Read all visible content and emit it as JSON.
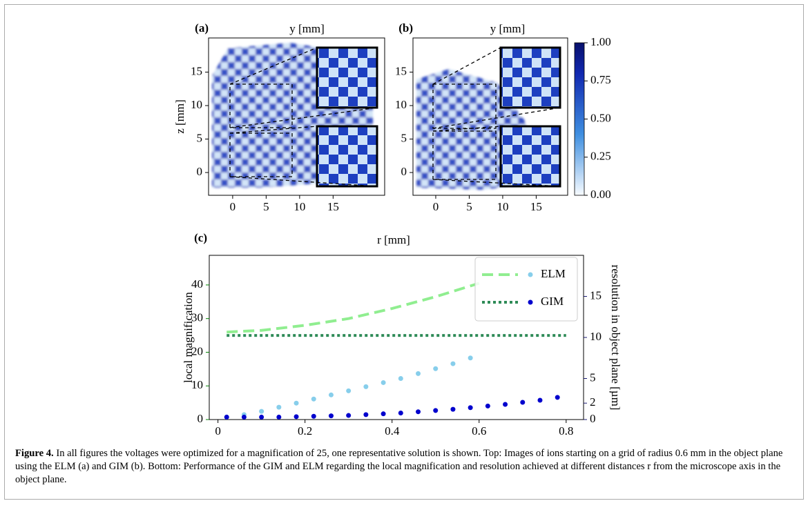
{
  "figure": {
    "panels": [
      {
        "label": "(a)",
        "xlabel": "y [mm]",
        "ylabel": "z [mm]",
        "xlim": [
          -3.6,
          22.7
        ],
        "ylim": [
          -3.4,
          20.1
        ],
        "xticks": [
          0,
          5,
          10,
          15
        ],
        "yticks": [
          0,
          5,
          10,
          15
        ]
      },
      {
        "label": "(b)",
        "xlabel": "y [mm]",
        "xlim": [
          -3.4,
          19.7
        ],
        "ylim": [
          -3.4,
          20.1
        ],
        "xticks": [
          0,
          5,
          10,
          15
        ],
        "yticks": [
          0,
          5,
          10,
          15
        ]
      }
    ],
    "colorbar": {
      "lim": [
        0,
        1
      ],
      "ticks": [
        {
          "value": 0,
          "label": "0.00"
        },
        {
          "value": 0.25,
          "label": "0.25"
        },
        {
          "value": 0.5,
          "label": "0.50"
        },
        {
          "value": 0.75,
          "label": "0.75"
        },
        {
          "value": 1,
          "label": "1.00"
        }
      ]
    }
  },
  "chart_data": {
    "type": "line",
    "label": "(c)",
    "xlabel": "r [mm]",
    "ylabel": "local magnification",
    "y2label": "resolution in object plane [µm]",
    "ylabel_color": "green",
    "y2label_color": "midnightblue",
    "legend": "upper right",
    "xlim": [
      -0.02,
      0.84
    ],
    "xticks": [
      0,
      0.2,
      0.4,
      0.6,
      0.8
    ],
    "ylim": [
      0,
      48.8
    ],
    "yticks": [
      0,
      10,
      20,
      30,
      40
    ],
    "y2lim": [
      0,
      20
    ],
    "y2ticks": [
      0,
      2,
      5,
      10,
      15
    ],
    "series": [
      {
        "name": "ELM",
        "color": "#90ee90",
        "style": "dashed",
        "x": [
          0.02,
          0.1,
          0.2,
          0.3,
          0.4,
          0.5,
          0.6
        ],
        "values": [
          26,
          26.5,
          28,
          30,
          33,
          36.5,
          40.5
        ]
      },
      {
        "name": "GIM",
        "color": "#2e8b57",
        "style": "dotted",
        "x": [
          0.02,
          0.8
        ],
        "values": [
          25,
          25
        ]
      },
      {
        "color": "#87ceeb",
        "style": "points",
        "axis": "y2",
        "x": [
          0.02,
          0.06,
          0.1,
          0.14,
          0.18,
          0.22,
          0.26,
          0.3,
          0.34,
          0.38,
          0.42,
          0.46,
          0.5,
          0.54,
          0.58
        ],
        "values": [
          0.3,
          0.6,
          1.0,
          1.5,
          2.0,
          2.5,
          3.0,
          3.5,
          4.0,
          4.5,
          5.0,
          5.6,
          6.2,
          6.8,
          7.5
        ]
      },
      {
        "color": "#0000cd",
        "style": "points",
        "axis": "y2",
        "x": [
          0.02,
          0.06,
          0.1,
          0.14,
          0.18,
          0.22,
          0.26,
          0.3,
          0.34,
          0.38,
          0.42,
          0.46,
          0.5,
          0.54,
          0.58,
          0.62,
          0.66,
          0.7,
          0.74,
          0.78
        ],
        "values": [
          0.3,
          0.3,
          0.3,
          0.3,
          0.35,
          0.4,
          0.45,
          0.5,
          0.6,
          0.7,
          0.8,
          0.95,
          1.1,
          1.25,
          1.45,
          1.65,
          1.85,
          2.1,
          2.35,
          2.7
        ]
      }
    ]
  },
  "caption": {
    "label": "Figure 4.",
    "text": "In all figures the voltages were optimized for a magnification of 25, one representative solution is shown. Top: Images of ions starting on a grid of radius 0.6 mm in the object plane using the ELM (a) and GIM (b). Bottom: Performance of the GIM and ELM regarding the local magnification and resolution achieved at different distances r from the microscope axis in the object plane."
  }
}
